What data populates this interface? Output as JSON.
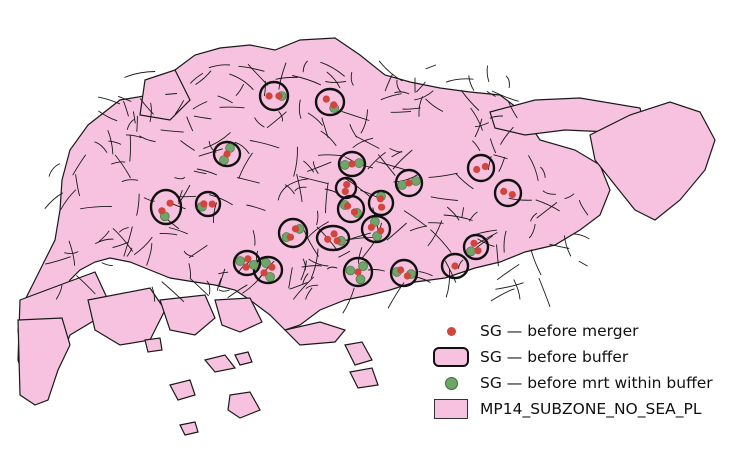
{
  "legend": {
    "items": [
      {
        "label": "SG — before merger",
        "symbol": "point",
        "color": "#d0463c"
      },
      {
        "label": "SG — before buffer",
        "symbol": "buffer-outline",
        "color": "#111111"
      },
      {
        "label": "SG — before mrt within buffer",
        "symbol": "point",
        "color": "#6ea569"
      },
      {
        "label": "MP14_SUBZONE_NO_SEA_PL",
        "symbol": "polygon-fill",
        "color": "#f6c2df"
      }
    ]
  },
  "colors": {
    "land_fill": "#f6c2df",
    "boundary": "#1a1a1a",
    "merger_point": "#d0463c",
    "mrt_point": "#6ea569",
    "buffer_outline": "#111111"
  }
}
